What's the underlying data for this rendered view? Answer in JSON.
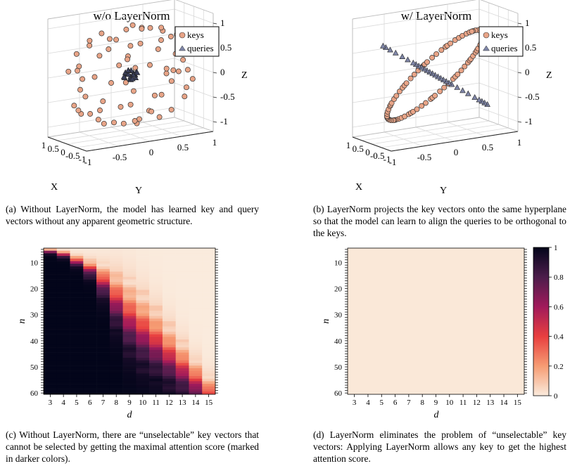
{
  "captions": {
    "a": "(a) Without LayerNorm, the model has learned key and query vectors without any apparent geometric structure.",
    "b": "(b) LayerNorm projects the key vectors onto the same hyperplane so that the model can learn to align the queries to be orthogonal to the keys.",
    "c": "(c) Without LayerNorm, there are “unselectable” key vectors that cannot be selected by getting the maximal attention score (marked in darker colors).",
    "d": "(d) LayerNorm eliminates the problem of “unselectable” key vectors: Applying LayerNorm allows any key to get the highest attention score."
  },
  "colors": {
    "keys": "#e8a487",
    "queries": "#7f86a8"
  },
  "chart_data": [
    {
      "type": "scatter",
      "title": "w/o LayerNorm",
      "xlabel": "X",
      "ylabel": "Y",
      "zlabel": "Z",
      "xlim": [
        -1,
        1
      ],
      "ylim": [
        -1,
        1
      ],
      "zlim": [
        -1.2,
        1.2
      ],
      "x_ticks": [
        "-1",
        "-0.5",
        "0",
        "0.5",
        "1"
      ],
      "y_ticks": [
        "-1",
        "-0.5",
        "0",
        "0.5",
        "1"
      ],
      "z_ticks": [
        "1",
        "0.5",
        "0",
        "-0.5",
        "-1"
      ],
      "legend": [
        "keys",
        "queries"
      ],
      "legend_position": "top-right",
      "series": [
        {
          "name": "keys",
          "marker": "circle",
          "points": [
            [
              0.92,
              0.1,
              0.05
            ],
            [
              -0.88,
              0.3,
              0.2
            ],
            [
              0.15,
              0.95,
              -0.1
            ],
            [
              -0.2,
              -0.9,
              0.3
            ],
            [
              0.4,
              0.3,
              0.85
            ],
            [
              -0.3,
              -0.2,
              -0.9
            ],
            [
              0.7,
              -0.6,
              0.2
            ],
            [
              -0.6,
              0.7,
              -0.3
            ],
            [
              0.55,
              0.55,
              -0.6
            ],
            [
              -0.5,
              -0.5,
              0.7
            ],
            [
              0.3,
              -0.8,
              -0.5
            ],
            [
              -0.35,
              0.8,
              0.5
            ],
            [
              0.8,
              0.4,
              0.45
            ],
            [
              -0.8,
              -0.4,
              -0.45
            ],
            [
              0.05,
              0.5,
              0.86
            ],
            [
              -0.1,
              -0.45,
              -0.88
            ],
            [
              0.6,
              -0.3,
              -0.74
            ],
            [
              -0.6,
              0.3,
              0.74
            ],
            [
              0.85,
              -0.5,
              -0.1
            ],
            [
              -0.85,
              0.5,
              0.1
            ],
            [
              0.2,
              0.2,
              -0.96
            ],
            [
              -0.25,
              0.1,
              0.96
            ],
            [
              0.45,
              0.85,
              0.2
            ],
            [
              -0.45,
              -0.85,
              -0.2
            ],
            [
              0.95,
              -0.2,
              0.3
            ],
            [
              -0.95,
              0.2,
              -0.3
            ],
            [
              0.1,
              -0.95,
              0.25
            ],
            [
              -0.1,
              0.95,
              -0.25
            ],
            [
              0.65,
              0.2,
              -0.73
            ],
            [
              -0.65,
              -0.2,
              0.73
            ],
            [
              0.3,
              0.6,
              0.74
            ],
            [
              -0.3,
              -0.6,
              -0.74
            ],
            [
              0.75,
              -0.1,
              0.65
            ],
            [
              -0.75,
              0.1,
              -0.65
            ],
            [
              0.5,
              -0.7,
              0.5
            ],
            [
              -0.5,
              0.7,
              -0.5
            ],
            [
              0.05,
              0.05,
              1.0
            ],
            [
              0.0,
              0.1,
              -1.0
            ],
            [
              1.0,
              0.0,
              -0.3
            ],
            [
              -1.0,
              0.0,
              0.35
            ],
            [
              0.35,
              -0.35,
              0.87
            ],
            [
              -0.35,
              0.35,
              -0.87
            ],
            [
              0.6,
              0.75,
              -0.2
            ],
            [
              -0.6,
              -0.75,
              0.2
            ],
            [
              0.25,
              0.9,
              0.5
            ],
            [
              -0.25,
              -0.9,
              -0.5
            ],
            [
              0.82,
              0.3,
              -0.5
            ],
            [
              -0.82,
              -0.3,
              0.5
            ],
            [
              0.15,
              -0.6,
              0.8
            ],
            [
              -0.15,
              0.6,
              -0.8
            ],
            [
              0.9,
              0.35,
              -0.05
            ],
            [
              -0.9,
              -0.35,
              0.05
            ],
            [
              0.45,
              -0.5,
              -0.75
            ],
            [
              -0.45,
              0.5,
              0.75
            ],
            [
              0.7,
              0.65,
              0.3
            ],
            [
              -0.7,
              -0.65,
              -0.3
            ],
            [
              0.2,
              -0.2,
              -0.95
            ],
            [
              -0.2,
              0.25,
              0.94
            ],
            [
              0.55,
              0.1,
              0.83
            ],
            [
              -0.55,
              -0.1,
              -0.83
            ],
            [
              0.95,
              0.25,
              0.2
            ],
            [
              -0.9,
              0.4,
              0.15
            ],
            [
              0.35,
              0.4,
              -0.85
            ],
            [
              -0.4,
              -0.35,
              0.85
            ],
            [
              0.65,
              -0.45,
              0.6
            ],
            [
              -0.1,
              0.7,
              0.7
            ],
            [
              0.1,
              -0.75,
              -0.65
            ],
            [
              0.8,
              -0.55,
              -0.3
            ],
            [
              -0.75,
              0.6,
              0.3
            ],
            [
              0.5,
              0.8,
              -0.35
            ]
          ]
        },
        {
          "name": "queries",
          "marker": "triangle",
          "points": [
            [
              0.05,
              0.02,
              0.05
            ],
            [
              -0.05,
              -0.02,
              -0.04
            ],
            [
              0.03,
              -0.03,
              0.02
            ],
            [
              -0.03,
              0.04,
              0.0
            ],
            [
              0.0,
              0.0,
              -0.02
            ],
            [
              0.06,
              0.05,
              0.01
            ],
            [
              -0.06,
              -0.05,
              0.03
            ],
            [
              0.02,
              0.06,
              -0.05
            ],
            [
              -0.02,
              -0.06,
              0.05
            ],
            [
              0.04,
              -0.05,
              -0.03
            ],
            [
              -0.04,
              0.05,
              0.04
            ],
            [
              0.01,
              0.01,
              0.06
            ],
            [
              -0.01,
              0.0,
              -0.06
            ],
            [
              0.07,
              0.0,
              0.0
            ],
            [
              -0.07,
              0.01,
              0.01
            ],
            [
              0.0,
              0.07,
              0.02
            ],
            [
              0.0,
              -0.07,
              -0.01
            ],
            [
              0.03,
              0.03,
              -0.06
            ],
            [
              -0.03,
              -0.03,
              0.07
            ],
            [
              0.05,
              -0.01,
              0.06
            ]
          ]
        }
      ]
    },
    {
      "type": "scatter",
      "title": "w/ LayerNorm",
      "xlabel": "X",
      "ylabel": "Y",
      "zlabel": "Z",
      "xlim": [
        -1,
        1
      ],
      "ylim": [
        -1,
        1
      ],
      "zlim": [
        -1.2,
        1.2
      ],
      "x_ticks": [
        "-1",
        "-0.5",
        "0",
        "0.5",
        "1"
      ],
      "y_ticks": [
        "-1",
        "-0.5",
        "0",
        "0.5",
        "1"
      ],
      "z_ticks": [
        "1",
        "0.5",
        "0",
        "-0.5",
        "-1"
      ],
      "legend": [
        "keys",
        "queries"
      ],
      "legend_position": "top-right",
      "ring_normal": [
        1,
        -1,
        1
      ],
      "series": [
        {
          "name": "keys",
          "marker": "circle",
          "ring_angles_deg": [
            0,
            5,
            9,
            14,
            20,
            26,
            31,
            37,
            42,
            48,
            53,
            58,
            64,
            70,
            75,
            81,
            86,
            92,
            97,
            103,
            108,
            113,
            119,
            125,
            130,
            136,
            141,
            147,
            152,
            158,
            163,
            168,
            174,
            180,
            185,
            191,
            196,
            202,
            207,
            213,
            218,
            223,
            229,
            235,
            240,
            246,
            251,
            257,
            262,
            268,
            273,
            278,
            284,
            290,
            295,
            301,
            306,
            312,
            317,
            323,
            328,
            333,
            339,
            345,
            350,
            355,
            3,
            17,
            44,
            61,
            88,
            123,
            150,
            177,
            205,
            232,
            259,
            287,
            314,
            342
          ]
        },
        {
          "name": "queries",
          "marker": "triangle",
          "line_t": [
            -0.95,
            -0.9,
            -0.85,
            -0.8,
            -0.72,
            -0.6,
            -0.5,
            -0.4,
            -0.3,
            -0.25,
            -0.2,
            -0.15,
            -0.1,
            -0.05,
            0,
            0.05,
            0.1,
            0.15,
            0.2,
            0.25,
            0.3,
            0.35,
            0.4,
            0.5,
            0.6,
            0.72,
            0.82,
            0.9,
            0.95
          ]
        }
      ]
    },
    {
      "type": "heatmap",
      "title": "",
      "xlabel": "d",
      "ylabel": "n",
      "x": [
        3,
        4,
        5,
        6,
        7,
        8,
        9,
        10,
        11,
        12,
        13,
        14,
        15
      ],
      "y_range": [
        5,
        60
      ],
      "y_ticks": [
        10,
        20,
        30,
        40,
        50,
        60
      ],
      "value_range": [
        0,
        1
      ],
      "description_rule": "fraction of unselectable keys; each column d is ~1 for n above a threshold growing with d",
      "thresholds": [
        5,
        6,
        8,
        10,
        13,
        17,
        22,
        27,
        32,
        38,
        44,
        50,
        56
      ],
      "widths": [
        1.5,
        2,
        3,
        5,
        9,
        15,
        19,
        19,
        18,
        16,
        14,
        12,
        10
      ]
    },
    {
      "type": "heatmap",
      "title": "",
      "xlabel": "d",
      "ylabel": "n",
      "x": [
        3,
        4,
        5,
        6,
        7,
        8,
        9,
        10,
        11,
        12,
        13,
        14,
        15
      ],
      "y_range": [
        5,
        60
      ],
      "y_ticks": [
        10,
        20,
        30,
        40,
        50,
        60
      ],
      "value_range": [
        0,
        1
      ],
      "uniform_value": 0,
      "colorbar_ticks": [
        "1",
        "0.8",
        "0.6",
        "0.4",
        "0.2",
        "0"
      ]
    }
  ]
}
